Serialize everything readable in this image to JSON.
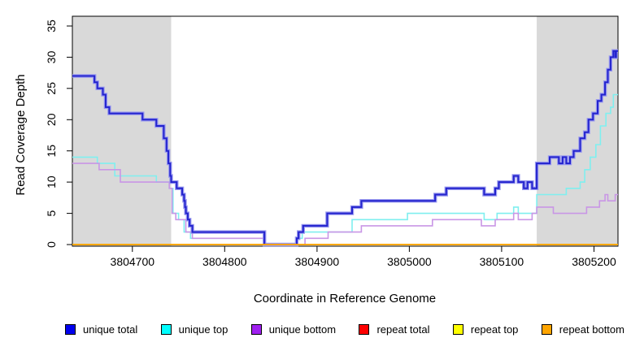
{
  "chart_data": {
    "type": "line",
    "subtype": "step-coverage",
    "xlabel": "Coordinate in Reference Genome",
    "ylabel": "Read Coverage Depth",
    "xlim": [
      3804635,
      3805226
    ],
    "ylim": [
      0,
      35
    ],
    "x_ticks": [
      3804700,
      3804800,
      3804900,
      3805000,
      3805100,
      3805200
    ],
    "y_ticks": [
      0,
      5,
      10,
      15,
      20,
      25,
      30,
      35
    ],
    "grid": false,
    "legend_position": "bottom",
    "background_color": "#ffffff",
    "shaded_region_color": "#d9d9d9",
    "shaded_regions": [
      {
        "x1": 3804635,
        "x2": 3804742
      },
      {
        "x1": 3805138,
        "x2": 3805226
      }
    ],
    "series": [
      {
        "name": "unique total",
        "color": "#2323CE",
        "halo_color": "#9a9aef",
        "legend_color": "#0000EE",
        "width": 2,
        "points": [
          [
            3804635,
            27
          ],
          [
            3804659,
            26
          ],
          [
            3804662,
            25
          ],
          [
            3804668,
            24
          ],
          [
            3804671,
            22
          ],
          [
            3804675,
            21
          ],
          [
            3804711,
            20
          ],
          [
            3804726,
            19
          ],
          [
            3804734,
            17
          ],
          [
            3804737,
            15
          ],
          [
            3804739,
            13
          ],
          [
            3804741,
            11
          ],
          [
            3804742,
            10
          ],
          [
            3804748,
            9
          ],
          [
            3804754,
            8
          ],
          [
            3804756,
            7
          ],
          [
            3804757,
            6
          ],
          [
            3804758,
            5
          ],
          [
            3804760,
            4
          ],
          [
            3804762,
            3
          ],
          [
            3804765,
            2
          ],
          [
            3804843,
            0
          ],
          [
            3804878,
            1
          ],
          [
            3804880,
            2
          ],
          [
            3804885,
            3
          ],
          [
            3804911,
            5
          ],
          [
            3804938,
            6
          ],
          [
            3804948,
            7
          ],
          [
            3805028,
            8
          ],
          [
            3805040,
            9
          ],
          [
            3805081,
            8
          ],
          [
            3805093,
            9
          ],
          [
            3805097,
            10
          ],
          [
            3805113,
            11
          ],
          [
            3805118,
            10
          ],
          [
            3805124,
            9
          ],
          [
            3805128,
            10
          ],
          [
            3805133,
            9
          ],
          [
            3805138,
            13
          ],
          [
            3805152,
            14
          ],
          [
            3805162,
            13
          ],
          [
            3805166,
            14
          ],
          [
            3805170,
            13
          ],
          [
            3805174,
            14
          ],
          [
            3805178,
            15
          ],
          [
            3805185,
            17
          ],
          [
            3805190,
            18
          ],
          [
            3805194,
            20
          ],
          [
            3805199,
            21
          ],
          [
            3805204,
            23
          ],
          [
            3805208,
            24
          ],
          [
            3805212,
            26
          ],
          [
            3805215,
            28
          ],
          [
            3805218,
            30
          ],
          [
            3805221,
            31
          ],
          [
            3805223,
            30
          ],
          [
            3805224,
            31
          ]
        ]
      },
      {
        "name": "unique top",
        "color": "#7fefef",
        "legend_color": "#00FFFF",
        "width": 1.6,
        "points": [
          [
            3804635,
            14
          ],
          [
            3804662,
            13
          ],
          [
            3804681,
            11
          ],
          [
            3804726,
            10
          ],
          [
            3804740,
            9
          ],
          [
            3804744,
            5
          ],
          [
            3804750,
            4
          ],
          [
            3804756,
            2
          ],
          [
            3804763,
            1
          ],
          [
            3804843,
            0
          ],
          [
            3804878,
            1
          ],
          [
            3804884,
            2
          ],
          [
            3804938,
            4
          ],
          [
            3804998,
            5
          ],
          [
            3805081,
            4
          ],
          [
            3805095,
            5
          ],
          [
            3805113,
            6
          ],
          [
            3805118,
            5
          ],
          [
            3805138,
            8
          ],
          [
            3805170,
            9
          ],
          [
            3805185,
            10
          ],
          [
            3805190,
            12
          ],
          [
            3805196,
            14
          ],
          [
            3805202,
            16
          ],
          [
            3805207,
            19
          ],
          [
            3805213,
            21
          ],
          [
            3805218,
            22
          ],
          [
            3805221,
            24
          ]
        ]
      },
      {
        "name": "unique bottom",
        "color": "#c996e6",
        "legend_color": "#A020F0",
        "width": 1.6,
        "points": [
          [
            3804635,
            13
          ],
          [
            3804664,
            12
          ],
          [
            3804687,
            10
          ],
          [
            3804740,
            9
          ],
          [
            3804743,
            5
          ],
          [
            3804747,
            4
          ],
          [
            3804758,
            2
          ],
          [
            3804765,
            1
          ],
          [
            3804843,
            0
          ],
          [
            3804887,
            1
          ],
          [
            3804912,
            2
          ],
          [
            3804948,
            3
          ],
          [
            3805025,
            4
          ],
          [
            3805078,
            3
          ],
          [
            3805093,
            4
          ],
          [
            3805113,
            5
          ],
          [
            3805118,
            4
          ],
          [
            3805133,
            5
          ],
          [
            3805138,
            6
          ],
          [
            3805156,
            5
          ],
          [
            3805192,
            6
          ],
          [
            3805206,
            7
          ],
          [
            3805212,
            8
          ],
          [
            3805215,
            7
          ],
          [
            3805223,
            8
          ]
        ]
      },
      {
        "name": "repeat total",
        "color": "#FF0000",
        "legend_color": "#FF0000",
        "width": 1.6,
        "points": [
          [
            3804635,
            0
          ]
        ]
      },
      {
        "name": "repeat top",
        "color": "#FFFF00",
        "legend_color": "#FFFF00",
        "width": 1.6,
        "points": [
          [
            3804635,
            0
          ]
        ]
      },
      {
        "name": "repeat bottom",
        "color": "#FFA500",
        "legend_color": "#FFA500",
        "width": 1.8,
        "points": [
          [
            3804635,
            0
          ]
        ]
      }
    ],
    "legend": [
      {
        "label": "unique total"
      },
      {
        "label": "unique top"
      },
      {
        "label": "unique bottom"
      },
      {
        "label": "repeat total"
      },
      {
        "label": "repeat top"
      },
      {
        "label": "repeat bottom"
      }
    ]
  }
}
